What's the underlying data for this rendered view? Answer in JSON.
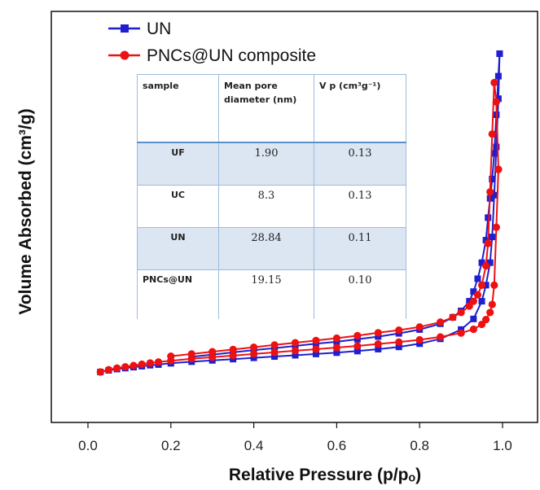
{
  "chart_data": {
    "type": "line",
    "title": "",
    "xlabel": "Relative Pressure (p/pₒ)",
    "ylabel": "Volume Absorbed (cm³/g)",
    "xlim": [
      0.0,
      1.0
    ],
    "x_ticks": [
      "0.0",
      "0.2",
      "0.4",
      "0.6",
      "0.8",
      "1.0"
    ],
    "y_ticks_shown": false,
    "legend_position": "top-left",
    "series": [
      {
        "name": "UN",
        "color": "#1f1fcf",
        "marker": "square",
        "adsorption": {
          "x": [
            0.03,
            0.05,
            0.07,
            0.09,
            0.11,
            0.13,
            0.15,
            0.17,
            0.2,
            0.25,
            0.3,
            0.35,
            0.4,
            0.45,
            0.5,
            0.55,
            0.6,
            0.65,
            0.7,
            0.75,
            0.8,
            0.85,
            0.9,
            0.93,
            0.95,
            0.96,
            0.97,
            0.975,
            0.98,
            0.985,
            0.99,
            0.993
          ],
          "y": [
            0.0,
            0.5,
            0.9,
            1.2,
            1.5,
            1.8,
            2.1,
            2.3,
            2.7,
            3.2,
            3.6,
            4.0,
            4.4,
            4.8,
            5.2,
            5.6,
            6.0,
            6.5,
            7.1,
            7.8,
            8.8,
            10.3,
            13.2,
            16.5,
            22.0,
            27.0,
            34.0,
            42.0,
            55.0,
            70.0,
            85.0,
            99.0
          ]
        },
        "desorption": {
          "x": [
            0.993,
            0.99,
            0.985,
            0.98,
            0.975,
            0.97,
            0.965,
            0.96,
            0.95,
            0.94,
            0.93,
            0.92,
            0.9,
            0.88,
            0.85,
            0.8,
            0.75,
            0.7,
            0.65,
            0.6,
            0.55,
            0.5,
            0.45,
            0.4,
            0.35,
            0.3,
            0.25
          ],
          "y": [
            99.0,
            92.0,
            80.0,
            68.0,
            60.0,
            54.0,
            48.0,
            41.0,
            34.0,
            29.0,
            25.0,
            22.0,
            19.0,
            17.0,
            15.0,
            13.2,
            12.0,
            11.0,
            10.2,
            9.4,
            8.8,
            8.1,
            7.4,
            6.8,
            6.1,
            5.4,
            4.7
          ]
        }
      },
      {
        "name": "PNCs@UN composite",
        "color": "#ee1111",
        "marker": "circle",
        "adsorption": {
          "x": [
            0.03,
            0.05,
            0.07,
            0.09,
            0.11,
            0.13,
            0.15,
            0.17,
            0.2,
            0.25,
            0.3,
            0.35,
            0.4,
            0.45,
            0.5,
            0.55,
            0.6,
            0.65,
            0.7,
            0.75,
            0.8,
            0.85,
            0.9,
            0.93,
            0.95,
            0.96,
            0.97,
            0.975,
            0.98,
            0.985,
            0.99
          ],
          "y": [
            0.0,
            0.7,
            1.2,
            1.6,
            2.0,
            2.4,
            2.8,
            3.1,
            3.5,
            4.1,
            4.6,
            5.1,
            5.6,
            6.1,
            6.6,
            7.1,
            7.6,
            8.1,
            8.7,
            9.3,
            10.0,
            10.9,
            12.1,
            13.3,
            14.8,
            16.3,
            18.5,
            21.0,
            27.0,
            45.0,
            63.0
          ]
        },
        "desorption": {
          "x": [
            0.99,
            0.985,
            0.98,
            0.975,
            0.97,
            0.965,
            0.96,
            0.95,
            0.94,
            0.93,
            0.92,
            0.9,
            0.88,
            0.85,
            0.8,
            0.75,
            0.7,
            0.65,
            0.6,
            0.55,
            0.5,
            0.45,
            0.4,
            0.35,
            0.3,
            0.25,
            0.2
          ],
          "y": [
            63.0,
            84.0,
            90.0,
            74.0,
            56.0,
            40.0,
            33.0,
            27.0,
            24.0,
            22.0,
            20.5,
            18.5,
            17.0,
            15.5,
            14.0,
            13.0,
            12.2,
            11.3,
            10.5,
            9.8,
            9.1,
            8.4,
            7.7,
            7.0,
            6.3,
            5.6,
            4.9
          ]
        }
      }
    ],
    "inset_table": {
      "headers": [
        "sample",
        "Mean pore diameter (nm)",
        "V p (cm³g⁻¹)"
      ],
      "rows": [
        [
          "UF",
          "1.90",
          "0.13"
        ],
        [
          "UC",
          "8.3",
          "0.13"
        ],
        [
          "UN",
          "28.84",
          "0.11"
        ],
        [
          "PNCs@UN",
          "19.15",
          "0.10"
        ]
      ]
    }
  }
}
